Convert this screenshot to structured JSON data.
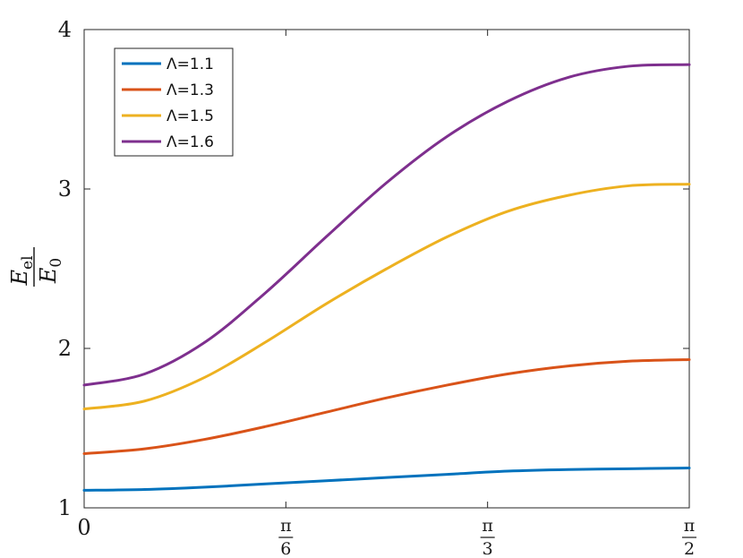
{
  "chart_data": {
    "type": "line",
    "title": "",
    "xlabel": "",
    "ylabel": {
      "numerator": "E",
      "numerator_sub": "el",
      "denominator": "E",
      "denominator_sub": "0"
    },
    "xlim": [
      0,
      1.5708
    ],
    "ylim": [
      1,
      4
    ],
    "x_ticks": [
      {
        "value": 0,
        "label": "0"
      },
      {
        "value": 0.5236,
        "num": "π",
        "den": "6"
      },
      {
        "value": 1.0472,
        "num": "π",
        "den": "3"
      },
      {
        "value": 1.5708,
        "num": "π",
        "den": "2"
      }
    ],
    "y_ticks": [
      {
        "value": 1,
        "label": "1"
      },
      {
        "value": 2,
        "label": "2"
      },
      {
        "value": 3,
        "label": "3"
      },
      {
        "value": 4,
        "label": "4"
      }
    ],
    "grid": false,
    "legend_position": "top-left",
    "x": [
      0,
      0.1571,
      0.3142,
      0.4712,
      0.6283,
      0.7854,
      0.9425,
      1.0996,
      1.2566,
      1.4137,
      1.5708
    ],
    "series": [
      {
        "name": "Λ=1.1",
        "color": "#0072BD",
        "values": [
          1.11,
          1.115,
          1.13,
          1.15,
          1.17,
          1.19,
          1.21,
          1.23,
          1.24,
          1.245,
          1.25
        ]
      },
      {
        "name": "Λ=1.3",
        "color": "#D95319",
        "values": [
          1.34,
          1.37,
          1.43,
          1.51,
          1.6,
          1.69,
          1.77,
          1.84,
          1.89,
          1.92,
          1.93
        ]
      },
      {
        "name": "Λ=1.5",
        "color": "#EDB120",
        "values": [
          1.62,
          1.67,
          1.82,
          2.04,
          2.28,
          2.5,
          2.7,
          2.86,
          2.96,
          3.02,
          3.03
        ]
      },
      {
        "name": "Λ=1.6",
        "color": "#7E2F8E",
        "values": [
          1.77,
          1.84,
          2.04,
          2.35,
          2.7,
          3.04,
          3.33,
          3.55,
          3.7,
          3.77,
          3.78
        ]
      }
    ]
  }
}
